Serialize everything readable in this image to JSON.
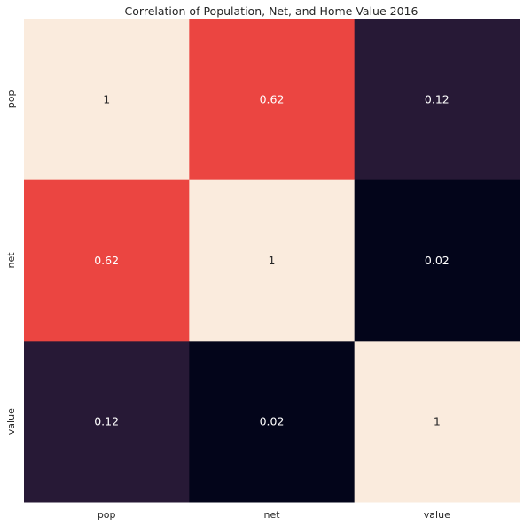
{
  "chart_data": {
    "type": "heatmap",
    "title": "Correlation of Population, Net, and Home Value 2016",
    "x_categories": [
      "pop",
      "net",
      "value"
    ],
    "y_categories": [
      "pop",
      "net",
      "value"
    ],
    "values": [
      [
        1,
        0.62,
        0.12
      ],
      [
        0.62,
        1,
        0.02
      ],
      [
        0.12,
        0.02,
        1
      ]
    ],
    "labels": [
      [
        "1",
        "0.62",
        "0.12"
      ],
      [
        "0.62",
        "1",
        "0.02"
      ],
      [
        "0.12",
        "0.02",
        "1"
      ]
    ],
    "colors": [
      [
        "#faebdd",
        "#eb4541",
        "#271936"
      ],
      [
        "#eb4541",
        "#faebdd",
        "#03051a"
      ],
      [
        "#271936",
        "#03051a",
        "#faebdd"
      ]
    ],
    "label_colors": [
      [
        "#262626",
        "#ffffff",
        "#ffffff"
      ],
      [
        "#ffffff",
        "#262626",
        "#ffffff"
      ],
      [
        "#ffffff",
        "#ffffff",
        "#262626"
      ]
    ],
    "colormap": "rocket",
    "colorbar": false,
    "grid": false
  }
}
